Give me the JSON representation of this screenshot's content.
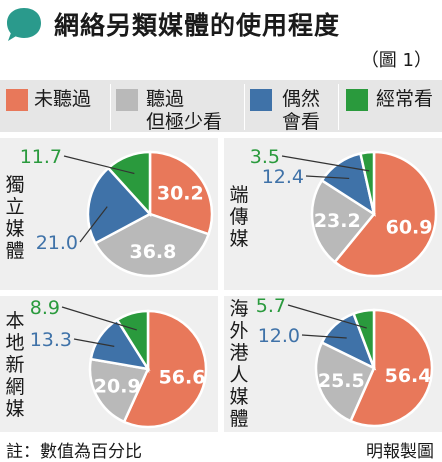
{
  "title": "網絡另類媒體的使用程度",
  "figure_label": "（圖 1）",
  "colors": {
    "never": "#e8785a",
    "rarely": "#b9b9b9",
    "occasionally": "#3f72a8",
    "often": "#2a9a3d"
  },
  "legend": [
    {
      "key": "never",
      "label": "未聽過"
    },
    {
      "key": "rarely",
      "label": "聽過\n但極少看"
    },
    {
      "key": "occasionally",
      "label": "偶然\n會看"
    },
    {
      "key": "often",
      "label": "經常看"
    }
  ],
  "chart_data": [
    {
      "type": "pie",
      "label": "獨立媒體",
      "categories": [
        "未聽過",
        "聽過但極少看",
        "偶然會看",
        "經常看"
      ],
      "values": [
        30.2,
        36.8,
        21.0,
        11.7
      ],
      "value_labels": [
        "30.2",
        "36.8",
        "21.0",
        "11.7"
      ]
    },
    {
      "type": "pie",
      "label": "端傳媒",
      "categories": [
        "未聽過",
        "聽過但極少看",
        "偶然會看",
        "經常看"
      ],
      "values": [
        60.9,
        23.2,
        12.4,
        3.5
      ],
      "value_labels": [
        "60.9",
        "23.2",
        "12.4",
        "3.5"
      ]
    },
    {
      "type": "pie",
      "label": "本地新網媒",
      "categories": [
        "未聽過",
        "聽過但極少看",
        "偶然會看",
        "經常看"
      ],
      "values": [
        56.6,
        20.9,
        13.3,
        8.9
      ],
      "value_labels": [
        "56.6",
        "20.9",
        "13.3",
        "8.9"
      ]
    },
    {
      "type": "pie",
      "label": "海外港人媒體",
      "categories": [
        "未聽過",
        "聽過但極少看",
        "偶然會看",
        "經常看"
      ],
      "values": [
        56.4,
        25.5,
        12.0,
        5.7
      ],
      "value_labels": [
        "56.4",
        "25.5",
        "12.0",
        "5.7"
      ]
    }
  ],
  "footnote": "註：數值為百分比",
  "credit": "明報製圖"
}
